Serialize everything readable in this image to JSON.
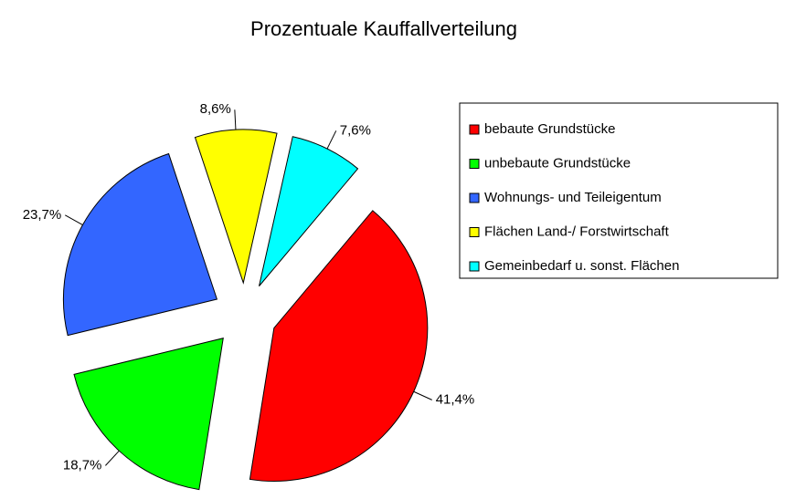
{
  "chart_data": {
    "type": "pie",
    "title": "Prozentuale Kauffallverteilung",
    "categories": [
      "bebaute Grundstücke",
      "unbebaute Grundstücke",
      "Wohnungs- und Teileigentum",
      "Flächen Land-/ Forstwirtschaft",
      "Gemeinbedarf u. sonst. Flächen"
    ],
    "values": [
      41.4,
      18.7,
      23.7,
      8.6,
      7.6
    ],
    "value_labels": [
      "41,4%",
      "18,7%",
      "23,7%",
      "8,6%",
      "7,6%"
    ],
    "colors": [
      "#ff0000",
      "#00ff00",
      "#3366ff",
      "#ffff00",
      "#00ffff"
    ],
    "legend": "right"
  }
}
